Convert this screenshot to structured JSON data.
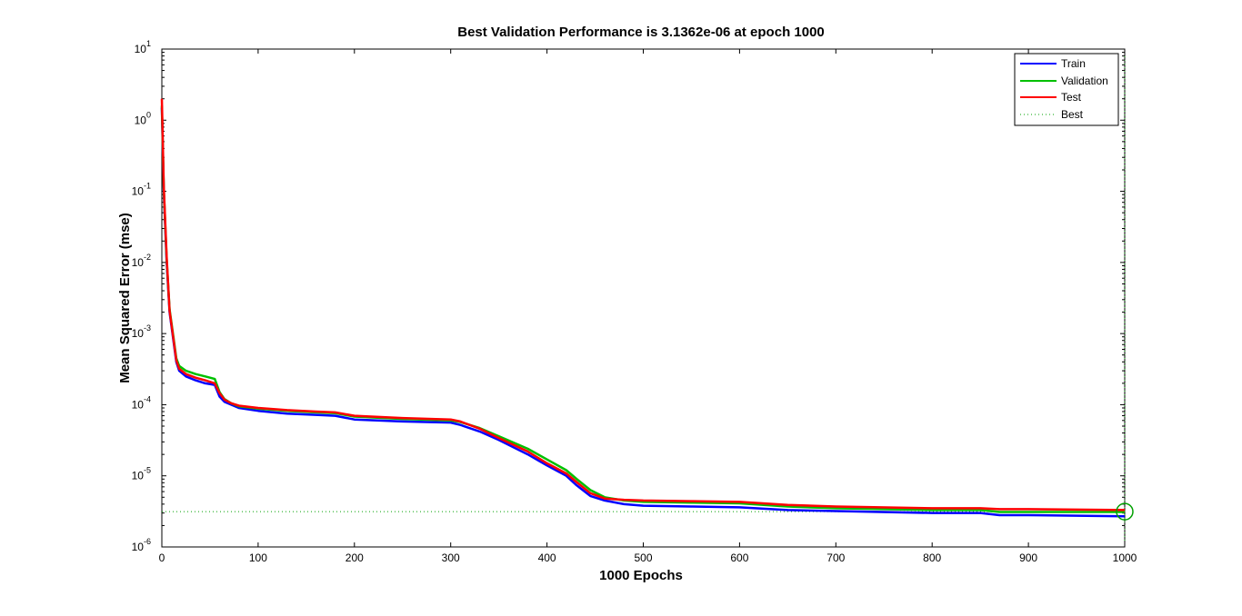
{
  "chart_data": {
    "type": "line",
    "title": "Best Validation Performance is 3.1362e-06 at epoch 1000",
    "xlabel": "1000 Epochs",
    "ylabel": "Mean Squared Error  (mse)",
    "xlim": [
      0,
      1000
    ],
    "ylim": [
      1e-06,
      10
    ],
    "yscale": "log",
    "xticks": [
      0,
      100,
      200,
      300,
      400,
      500,
      600,
      700,
      800,
      900,
      1000
    ],
    "xtick_labels": [
      "0",
      "100",
      "200",
      "300",
      "400",
      "500",
      "600",
      "700",
      "800",
      "900",
      "1000"
    ],
    "yticks": [
      {
        "value": 1e-06,
        "base": "10",
        "exp": "-6"
      },
      {
        "value": 1e-05,
        "base": "10",
        "exp": "-5"
      },
      {
        "value": 0.0001,
        "base": "10",
        "exp": "-4"
      },
      {
        "value": 0.001,
        "base": "10",
        "exp": "-3"
      },
      {
        "value": 0.01,
        "base": "10",
        "exp": "-2"
      },
      {
        "value": 0.1,
        "base": "10",
        "exp": "-1"
      },
      {
        "value": 1,
        "base": "10",
        "exp": "0"
      },
      {
        "value": 10,
        "base": "10",
        "exp": "1"
      }
    ],
    "grid": false,
    "legend_position": "top-right",
    "series": [
      {
        "name": "Train",
        "color": "#0000ff",
        "x": [
          0,
          2,
          5,
          8,
          12,
          15,
          18,
          25,
          35,
          45,
          55,
          60,
          65,
          72,
          80,
          100,
          130,
          160,
          180,
          200,
          250,
          300,
          310,
          330,
          350,
          380,
          400,
          420,
          430,
          445,
          460,
          480,
          500,
          550,
          600,
          650,
          700,
          800,
          850,
          870,
          900,
          1000
        ],
        "y": [
          1.5,
          0.1,
          0.01,
          0.002,
          0.0008,
          0.0004,
          0.0003,
          0.00025,
          0.00022,
          0.0002,
          0.00019,
          0.00013,
          0.00011,
          0.0001,
          9e-05,
          8.2e-05,
          7.5e-05,
          7.2e-05,
          7e-05,
          6.2e-05,
          5.8e-05,
          5.6e-05,
          5.2e-05,
          4.2e-05,
          3.2e-05,
          2e-05,
          1.4e-05,
          1e-05,
          7.5e-06,
          5.2e-06,
          4.5e-06,
          4e-06,
          3.8e-06,
          3.7e-06,
          3.6e-06,
          3.3e-06,
          3.2e-06,
          3e-06,
          3e-06,
          2.8e-06,
          2.8e-06,
          2.7e-06
        ]
      },
      {
        "name": "Validation",
        "color": "#00c000",
        "x": [
          0,
          2,
          5,
          8,
          12,
          15,
          18,
          25,
          35,
          45,
          55,
          60,
          65,
          72,
          80,
          100,
          130,
          160,
          180,
          200,
          250,
          300,
          310,
          330,
          350,
          380,
          400,
          420,
          430,
          445,
          460,
          480,
          500,
          550,
          600,
          650,
          700,
          800,
          850,
          870,
          900,
          1000
        ],
        "y": [
          1.6,
          0.11,
          0.011,
          0.0022,
          0.0009,
          0.00045,
          0.00035,
          0.0003,
          0.00027,
          0.00025,
          0.00023,
          0.00015,
          0.00012,
          0.000105,
          9.5e-05,
          8.8e-05,
          8.2e-05,
          7.8e-05,
          7.6e-05,
          6.8e-05,
          6.3e-05,
          6e-05,
          5.7e-05,
          4.7e-05,
          3.6e-05,
          2.4e-05,
          1.7e-05,
          1.2e-05,
          9.2e-06,
          6.3e-06,
          5e-06,
          4.5e-06,
          4.3e-06,
          4.2e-06,
          4.1e-06,
          3.7e-06,
          3.5e-06,
          3.3e-06,
          3.3e-06,
          3.1e-06,
          3.1e-06,
          3.1e-06
        ]
      },
      {
        "name": "Test",
        "color": "#ff0000",
        "x": [
          0,
          2,
          5,
          8,
          12,
          15,
          18,
          25,
          35,
          45,
          55,
          60,
          65,
          72,
          80,
          100,
          130,
          160,
          180,
          200,
          250,
          300,
          310,
          330,
          350,
          380,
          400,
          420,
          430,
          445,
          460,
          480,
          500,
          550,
          600,
          650,
          700,
          800,
          850,
          870,
          900,
          1000
        ],
        "y": [
          2.0,
          0.12,
          0.012,
          0.0021,
          0.00085,
          0.00042,
          0.00032,
          0.00027,
          0.00024,
          0.00022,
          0.0002,
          0.000145,
          0.000118,
          0.000105,
          9.7e-05,
          9e-05,
          8.4e-05,
          8e-05,
          7.8e-05,
          7e-05,
          6.5e-05,
          6.2e-05,
          5.8e-05,
          4.6e-05,
          3.4e-05,
          2.2e-05,
          1.5e-05,
          1.08e-05,
          8.3e-06,
          5.7e-06,
          4.8e-06,
          4.6e-06,
          4.5e-06,
          4.4e-06,
          4.3e-06,
          3.9e-06,
          3.7e-06,
          3.5e-06,
          3.5e-06,
          3.4e-06,
          3.4e-06,
          3.3e-06
        ]
      }
    ],
    "best": {
      "name": "Best",
      "epoch": 1000,
      "value": 3.1362e-06,
      "color": "#00a000"
    }
  }
}
